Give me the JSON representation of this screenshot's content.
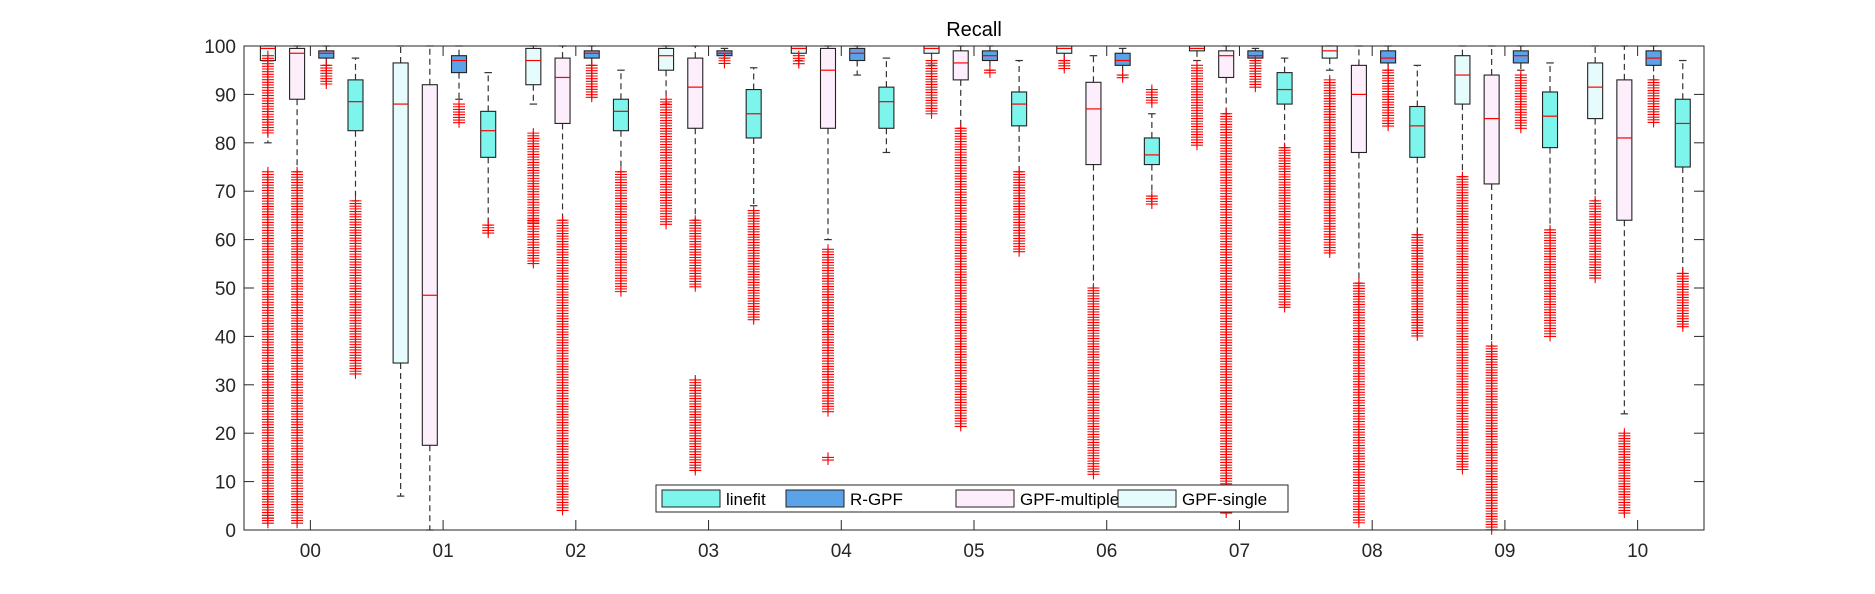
{
  "chart_data": {
    "type": "box",
    "title": "Recall",
    "xlabel": "",
    "ylabel": "",
    "ylim": [
      0,
      100
    ],
    "yticks": [
      0,
      10,
      20,
      30,
      40,
      50,
      60,
      70,
      80,
      90,
      100
    ],
    "categories": [
      "00",
      "01",
      "02",
      "03",
      "04",
      "05",
      "06",
      "07",
      "08",
      "09",
      "10"
    ],
    "legend_position": "bottom-center",
    "series": [
      {
        "name": "GPF-single",
        "color": "#e6fcfc",
        "boxes": [
          {
            "wlo": 80,
            "q1": 97,
            "med": 99.5,
            "q3": 100,
            "whi": 100,
            "outliers": [
              [
                82,
                98
              ],
              [
                1,
                74
              ],
              [
                2,
                3
              ]
            ]
          },
          {
            "wlo": 7,
            "q1": 34.5,
            "med": 88,
            "q3": 96.5,
            "whi": 100,
            "outliers": []
          },
          {
            "wlo": 88,
            "q1": 92,
            "med": 97,
            "q3": 99.5,
            "whi": 100,
            "outliers": [
              [
                55,
                82
              ],
              [
                63,
                64
              ]
            ]
          },
          {
            "wlo": 88,
            "q1": 95,
            "med": 98,
            "q3": 99.5,
            "whi": 100,
            "outliers": [
              [
                63,
                89
              ]
            ]
          },
          {
            "wlo": 97,
            "q1": 98.5,
            "med": 99.5,
            "q3": 100,
            "whi": 100,
            "outliers": [
              [
                96,
                98
              ]
            ]
          },
          {
            "wlo": 96,
            "q1": 98.5,
            "med": 99.5,
            "q3": 100,
            "whi": 100,
            "outliers": [
              [
                86,
                97
              ]
            ]
          },
          {
            "wlo": 97,
            "q1": 98.5,
            "med": 99.5,
            "q3": 100,
            "whi": 100,
            "outliers": [
              [
                95,
                97
              ]
            ]
          },
          {
            "wlo": 97,
            "q1": 99,
            "med": 99.5,
            "q3": 100,
            "whi": 100,
            "outliers": [
              [
                79,
                96
              ]
            ]
          },
          {
            "wlo": 95,
            "q1": 97.5,
            "med": 99,
            "q3": 100,
            "whi": 100,
            "outliers": [
              [
                57,
                93
              ]
            ]
          },
          {
            "wlo": 73,
            "q1": 88,
            "med": 94,
            "q3": 98,
            "whi": 100,
            "outliers": [
              [
                12,
                73
              ]
            ]
          },
          {
            "wlo": 68,
            "q1": 85,
            "med": 91.5,
            "q3": 96.5,
            "whi": 100,
            "outliers": [
              [
                52,
                68
              ]
            ]
          }
        ]
      },
      {
        "name": "GPF-multiple",
        "color": "#fdeefb",
        "boxes": [
          {
            "wlo": 74,
            "q1": 89,
            "med": 98.5,
            "q3": 99.5,
            "whi": 100,
            "outliers": [
              [
                1,
                74
              ]
            ]
          },
          {
            "wlo": 0,
            "q1": 17.5,
            "med": 48.5,
            "q3": 92,
            "whi": 100,
            "outliers": []
          },
          {
            "wlo": 64,
            "q1": 84,
            "med": 93.5,
            "q3": 97.5,
            "whi": 100,
            "outliers": [
              [
                4,
                64
              ]
            ]
          },
          {
            "wlo": 64,
            "q1": 83,
            "med": 91.5,
            "q3": 97.5,
            "whi": 100,
            "outliers": [
              [
                12,
                31
              ],
              [
                50,
                64
              ]
            ]
          },
          {
            "wlo": 60,
            "q1": 83,
            "med": 95,
            "q3": 99.5,
            "whi": 100,
            "outliers": [
              [
                14,
                15
              ],
              [
                24,
                58
              ]
            ]
          },
          {
            "wlo": 83,
            "q1": 93,
            "med": 96.5,
            "q3": 99,
            "whi": 100,
            "outliers": [
              [
                21,
                83
              ]
            ]
          },
          {
            "wlo": 50,
            "q1": 75.5,
            "med": 87,
            "q3": 92.5,
            "whi": 98,
            "outliers": [
              [
                11,
                50
              ]
            ]
          },
          {
            "wlo": 86,
            "q1": 93.5,
            "med": 98,
            "q3": 99,
            "whi": 100,
            "outliers": [
              [
                3,
                86
              ]
            ]
          },
          {
            "wlo": 51,
            "q1": 78,
            "med": 90,
            "q3": 96,
            "whi": 100,
            "outliers": [
              [
                1,
                51
              ]
            ]
          },
          {
            "wlo": 38,
            "q1": 71.5,
            "med": 85,
            "q3": 94,
            "whi": 100,
            "outliers": [
              [
                0,
                38
              ]
            ]
          },
          {
            "wlo": 24,
            "q1": 64,
            "med": 81,
            "q3": 93,
            "whi": 100,
            "outliers": [
              [
                3,
                20
              ]
            ]
          }
        ]
      },
      {
        "name": "R-GPF",
        "color": "#5aa3e8",
        "boxes": [
          {
            "wlo": 96,
            "q1": 97.5,
            "med": 98.5,
            "q3": 99,
            "whi": 100,
            "outliers": [
              [
                92,
                96
              ]
            ]
          },
          {
            "wlo": 89,
            "q1": 94.5,
            "med": 97,
            "q3": 98,
            "whi": 100,
            "outliers": [
              [
                84,
                88
              ]
            ]
          },
          {
            "wlo": 96,
            "q1": 97.5,
            "med": 98.5,
            "q3": 99,
            "whi": 100,
            "outliers": [
              [
                89,
                96
              ]
            ]
          },
          {
            "wlo": 97.5,
            "q1": 98,
            "med": 98.5,
            "q3": 99,
            "whi": 99.5,
            "outliers": [
              [
                96,
                97.5
              ]
            ]
          },
          {
            "wlo": 94,
            "q1": 97,
            "med": 98.5,
            "q3": 99.5,
            "whi": 100,
            "outliers": []
          },
          {
            "wlo": 95,
            "q1": 97,
            "med": 98,
            "q3": 99,
            "whi": 100,
            "outliers": [
              [
                94,
                95
              ]
            ]
          },
          {
            "wlo": 94,
            "q1": 96,
            "med": 97,
            "q3": 98.5,
            "whi": 99.5,
            "outliers": [
              [
                93,
                94
              ]
            ]
          },
          {
            "wlo": 97,
            "q1": 97.5,
            "med": 98,
            "q3": 99,
            "whi": 99.5,
            "outliers": [
              [
                91,
                97
              ]
            ]
          },
          {
            "wlo": 95,
            "q1": 96.5,
            "med": 97.5,
            "q3": 99,
            "whi": 100,
            "outliers": [
              [
                83,
                95
              ]
            ]
          },
          {
            "wlo": 95,
            "q1": 96.5,
            "med": 98,
            "q3": 99,
            "whi": 100,
            "outliers": [
              [
                83,
                94
              ]
            ]
          },
          {
            "wlo": 93,
            "q1": 96,
            "med": 97.5,
            "q3": 99,
            "whi": 100,
            "outliers": [
              [
                84,
                93
              ]
            ]
          }
        ]
      },
      {
        "name": "linefit",
        "color": "#7df4ec",
        "boxes": [
          {
            "wlo": 68,
            "q1": 82.5,
            "med": 88.5,
            "q3": 93,
            "whi": 97.5,
            "outliers": [
              [
                32,
                68
              ]
            ]
          },
          {
            "wlo": 63,
            "q1": 77,
            "med": 82.5,
            "q3": 86.5,
            "whi": 94.5,
            "outliers": [
              [
                61,
                63
              ]
            ]
          },
          {
            "wlo": 74,
            "q1": 82.5,
            "med": 86.5,
            "q3": 89,
            "whi": 95,
            "outliers": [
              [
                49,
                74
              ]
            ]
          },
          {
            "wlo": 67,
            "q1": 81,
            "med": 86,
            "q3": 91,
            "whi": 95.5,
            "outliers": [
              [
                43,
                66
              ]
            ]
          },
          {
            "wlo": 78,
            "q1": 83,
            "med": 88.5,
            "q3": 91.5,
            "whi": 97.5,
            "outliers": []
          },
          {
            "wlo": 74,
            "q1": 83.5,
            "med": 88,
            "q3": 90.5,
            "whi": 97,
            "outliers": [
              [
                57,
                74
              ]
            ]
          },
          {
            "wlo": 69,
            "q1": 75.5,
            "med": 77.5,
            "q3": 81,
            "whi": 86,
            "outliers": [
              [
                67,
                69
              ],
              [
                88,
                91
              ]
            ]
          },
          {
            "wlo": 79,
            "q1": 88,
            "med": 91,
            "q3": 94.5,
            "whi": 97.5,
            "outliers": [
              [
                46,
                79
              ]
            ]
          },
          {
            "wlo": 61,
            "q1": 77,
            "med": 83.5,
            "q3": 87.5,
            "whi": 96,
            "outliers": [
              [
                40,
                61
              ]
            ]
          },
          {
            "wlo": 62,
            "q1": 79,
            "med": 85.5,
            "q3": 90.5,
            "whi": 96.5,
            "outliers": [
              [
                40,
                62
              ]
            ]
          },
          {
            "wlo": 53,
            "q1": 75,
            "med": 84,
            "q3": 89,
            "whi": 97,
            "outliers": [
              [
                42,
                53
              ]
            ]
          }
        ]
      }
    ],
    "legend_entries": [
      "linefit",
      "R-GPF",
      "GPF-multiple",
      "GPF-single"
    ]
  }
}
